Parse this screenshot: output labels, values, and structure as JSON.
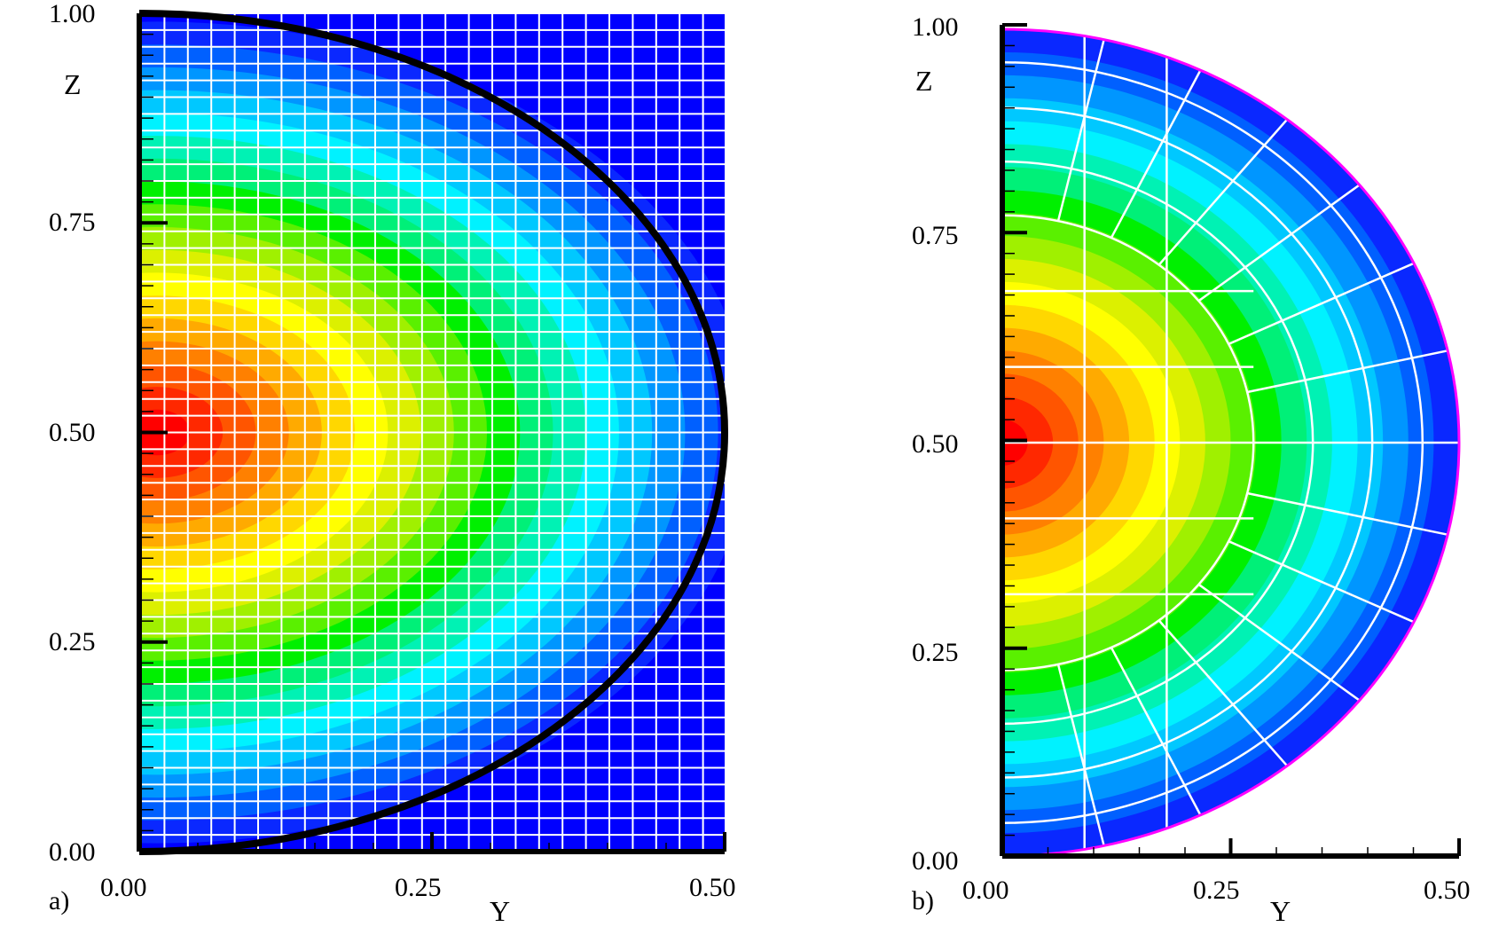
{
  "chart_data": [
    {
      "type": "heatmap",
      "panel_label": "a)",
      "xlabel": "Y",
      "ylabel": "Z",
      "xlim": [
        0,
        0.5
      ],
      "ylim": [
        0,
        1
      ],
      "x_ticks": [
        "0.00",
        "0.25",
        "0.50"
      ],
      "y_ticks": [
        "0.00",
        "0.25",
        "0.50",
        "0.75",
        "1.00"
      ],
      "grid": "cartesian",
      "boundary": "semicircle",
      "colors": {
        "background": "#0000ff",
        "boundary": "#000000",
        "mesh": "#ffffff"
      },
      "levels": [
        "#0a28ff",
        "#0060ff",
        "#0096ff",
        "#00c8ff",
        "#00f2ff",
        "#00f2b4",
        "#00f078",
        "#00f000",
        "#5af000",
        "#a0f000",
        "#dcf000",
        "#ffff00",
        "#ffd700",
        "#ffaa00",
        "#ff8000",
        "#ff5500",
        "#ff2800",
        "#ff0000"
      ]
    },
    {
      "type": "heatmap",
      "panel_label": "b)",
      "xlabel": "Y",
      "ylabel": "Z",
      "xlim": [
        0,
        0.5
      ],
      "ylim": [
        0,
        1
      ],
      "x_ticks": [
        "0.00",
        "0.25",
        "0.50"
      ],
      "y_ticks": [
        "0.00",
        "0.25",
        "0.50",
        "0.75",
        "1.00"
      ],
      "grid": "curvilinear",
      "boundary": "semicircle",
      "colors": {
        "boundary": "#ff00ff",
        "mesh": "#ffffff"
      },
      "levels": [
        "#0a28ff",
        "#0060ff",
        "#0096ff",
        "#00c8ff",
        "#00f2ff",
        "#00f2b4",
        "#00f078",
        "#00f000",
        "#5af000",
        "#a0f000",
        "#dcf000",
        "#ffff00",
        "#ffd700",
        "#ffaa00",
        "#ff8000",
        "#ff5500",
        "#ff2800",
        "#ff0000"
      ]
    }
  ]
}
